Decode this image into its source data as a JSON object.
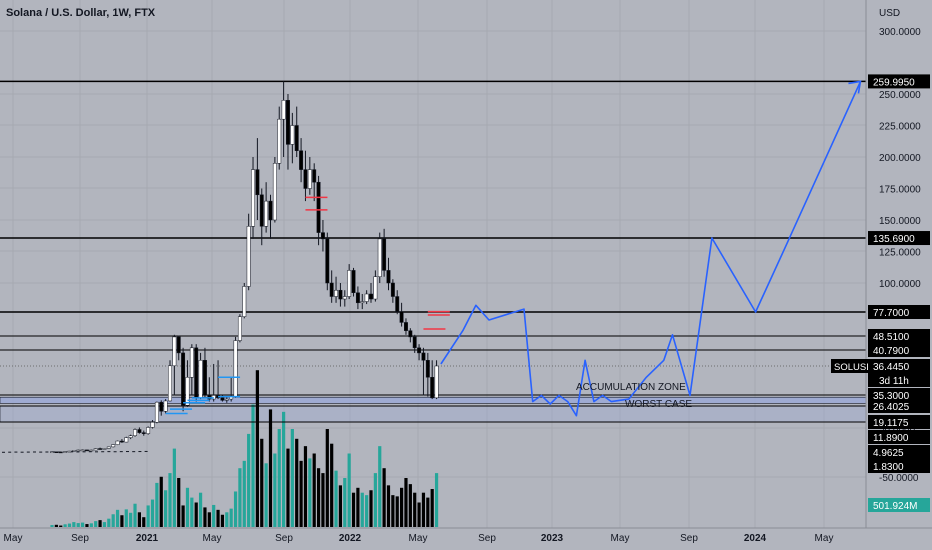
{
  "header": {
    "title": "Solana / U.S. Dollar, 1W, FTX"
  },
  "colors": {
    "background": "#b2b5be",
    "candle_up": "#ffffff",
    "candle_down": "#000000",
    "volume_up": "#26a69a",
    "volume_down": "#000000",
    "projection": "#2962ff",
    "zone_fill": "#9ba9d6",
    "red_marks": "#f23645",
    "blue_marks": "#2196f3",
    "label_bg": "#000000",
    "label_text": "#ffffff",
    "volume_label_bg": "#26a69a"
  },
  "chart_data": {
    "type": "candlestick",
    "title": "Solana / U.S. Dollar, 1W, FTX",
    "y_axis": {
      "unit": "USD",
      "ticks": [
        300,
        250,
        225,
        200,
        175,
        150,
        125,
        100,
        50,
        -50
      ],
      "tick_labels": [
        "300.0000",
        "250.0000",
        "225.0000",
        "200.0000",
        "175.0000",
        "150.0000",
        "125.0000",
        "100.0000",
        "50.0000",
        "-50.0000"
      ]
    },
    "x_axis": {
      "labels": [
        "May",
        "Sep",
        "2021",
        "May",
        "Sep",
        "2022",
        "May",
        "Sep",
        "2023",
        "May",
        "Sep",
        "2024",
        "May"
      ],
      "bold": [
        false,
        false,
        true,
        false,
        false,
        true,
        false,
        false,
        true,
        false,
        false,
        true,
        false
      ]
    },
    "horizontal_levels": [
      {
        "value": 259.995,
        "label": "259.9950"
      },
      {
        "value": 135.69,
        "label": "135.6900"
      },
      {
        "value": 77.7,
        "label": "77.7000"
      },
      {
        "value": 48.51,
        "label": "48.5100"
      },
      {
        "value": 40.79,
        "label": "40.7900"
      },
      {
        "value": 35.3,
        "label": "35.3000"
      },
      {
        "value": 26.4025,
        "label": "26.4025"
      },
      {
        "value": 19.1175,
        "label": "19.1175"
      }
    ],
    "extra_price_labels": [
      "11.8900",
      "4.9625",
      "1.8300"
    ],
    "current_price": {
      "symbol": "SOLUSD",
      "value": 36.445,
      "label": "36.4450",
      "countdown": "3d 11h"
    },
    "zones": [
      {
        "name": "ACCUMULATION ZONE",
        "from": 28.5,
        "to": 33.5
      },
      {
        "name": "WORST CASE",
        "from": 19.1175,
        "to": 26.4025
      }
    ],
    "candles": [
      [
        2.0,
        2.1,
        1.9,
        2.05
      ],
      [
        2.05,
        2.2,
        1.9,
        1.95
      ],
      [
        1.95,
        2.0,
        1.8,
        1.9
      ],
      [
        1.9,
        2.3,
        1.85,
        2.2
      ],
      [
        2.2,
        2.6,
        2.1,
        2.5
      ],
      [
        2.5,
        3.2,
        2.4,
        3.0
      ],
      [
        3.0,
        3.5,
        2.8,
        3.2
      ],
      [
        3.2,
        3.6,
        3.0,
        3.3
      ],
      [
        3.3,
        3.4,
        2.9,
        3.0
      ],
      [
        3.0,
        3.4,
        2.9,
        3.2
      ],
      [
        3.2,
        4.5,
        3.1,
        4.2
      ],
      [
        4.2,
        4.8,
        3.8,
        4.0
      ],
      [
        4.0,
        4.5,
        3.9,
        4.3
      ],
      [
        4.3,
        5.5,
        4.2,
        5.3
      ],
      [
        5.3,
        7.0,
        5.0,
        6.8
      ],
      [
        6.8,
        9.5,
        6.5,
        9.2
      ],
      [
        9.2,
        10.5,
        8.0,
        8.5
      ],
      [
        8.5,
        12.0,
        8.3,
        11.5
      ],
      [
        11.5,
        13.0,
        10.5,
        12.5
      ],
      [
        12.5,
        16.0,
        12.0,
        15.5
      ],
      [
        15.5,
        16.5,
        13.5,
        14.0
      ],
      [
        14.0,
        15.0,
        12.5,
        13.5
      ],
      [
        13.5,
        17.0,
        13.0,
        16.5
      ],
      [
        16.5,
        20.0,
        16.0,
        19.0
      ],
      [
        19.0,
        30.0,
        18.5,
        29.5
      ],
      [
        29.5,
        31.0,
        22.0,
        24.0
      ],
      [
        24.0,
        32.0,
        23.0,
        30.5
      ],
      [
        30.5,
        38.0,
        30.0,
        36.5
      ],
      [
        36.5,
        50.0,
        35.0,
        48.0
      ],
      [
        48.0,
        49.0,
        38.0,
        40.0
      ],
      [
        40.0,
        42.0,
        24.0,
        27.0
      ],
      [
        27.0,
        38.0,
        26.0,
        36.0
      ],
      [
        36.0,
        44.0,
        35.0,
        42.0
      ],
      [
        42.0,
        44.0,
        30.0,
        33.0
      ],
      [
        33.0,
        40.0,
        32.0,
        38.0
      ],
      [
        38.0,
        42.0,
        33.0,
        35.0
      ],
      [
        35.0,
        36.0,
        30.0,
        32.0
      ],
      [
        32.0,
        37.0,
        30.0,
        35.0
      ],
      [
        35.0,
        38.0,
        32.0,
        33.0
      ],
      [
        33.0,
        35.0,
        30.0,
        31.0
      ],
      [
        31.0,
        34.0,
        29.0,
        32.0
      ],
      [
        32.0,
        36.0,
        30.0,
        34.0
      ],
      [
        34.0,
        48.0,
        33.0,
        46.0
      ],
      [
        46.0,
        75.0,
        45.0,
        72.0
      ],
      [
        72.0,
        100.0,
        70.0,
        98.0
      ],
      [
        98.0,
        155.0,
        95.0,
        145.0
      ],
      [
        145.0,
        200.0,
        135.0,
        190.0
      ],
      [
        190.0,
        215.0,
        150.0,
        170.0
      ],
      [
        170.0,
        175.0,
        130.0,
        145.0
      ],
      [
        145.0,
        180.0,
        140.0,
        165.0
      ],
      [
        165.0,
        170.0,
        135.0,
        150.0
      ],
      [
        150.0,
        200.0,
        148.0,
        195.0
      ],
      [
        195.0,
        240.0,
        190.0,
        230.0
      ],
      [
        230.0,
        260.0,
        200.0,
        245.0
      ],
      [
        245.0,
        250.0,
        190.0,
        210.0
      ],
      [
        210.0,
        235.0,
        195.0,
        225.0
      ],
      [
        225.0,
        240.0,
        200.0,
        205.0
      ],
      [
        205.0,
        215.0,
        180.0,
        190.0
      ],
      [
        190.0,
        205.0,
        165.0,
        175.0
      ],
      [
        175.0,
        200.0,
        170.0,
        190.0
      ],
      [
        190.0,
        195.0,
        165.0,
        180.0
      ],
      [
        180.0,
        185.0,
        130.0,
        140.0
      ],
      [
        140.0,
        150.0,
        125.0,
        135.0
      ],
      [
        135.0,
        140.0,
        95.0,
        100.0
      ],
      [
        100.0,
        110.0,
        85.0,
        90.0
      ],
      [
        90.0,
        105.0,
        85.0,
        95.0
      ],
      [
        95.0,
        100.0,
        82.0,
        88.0
      ],
      [
        88.0,
        95.0,
        82.0,
        90.0
      ],
      [
        90.0,
        115.0,
        88.0,
        110.0
      ],
      [
        110.0,
        112.0,
        90.0,
        93.0
      ],
      [
        93.0,
        98.0,
        80.0,
        85.0
      ],
      [
        85.0,
        92.0,
        80.0,
        86.0
      ],
      [
        86.0,
        95.0,
        84.0,
        92.0
      ],
      [
        92.0,
        100.0,
        85.0,
        88.0
      ],
      [
        88.0,
        110.0,
        86.0,
        105.0
      ],
      [
        105.0,
        140.0,
        100.0,
        135.0
      ],
      [
        135.0,
        143.0,
        105.0,
        110.0
      ],
      [
        110.0,
        120.0,
        95.0,
        100.0
      ],
      [
        100.0,
        103.0,
        85.0,
        90.0
      ],
      [
        90.0,
        95.0,
        75.0,
        78.0
      ],
      [
        78.0,
        85.0,
        60.0,
        65.0
      ],
      [
        65.0,
        70.0,
        50.0,
        55.0
      ],
      [
        55.0,
        58.0,
        45.0,
        48.0
      ],
      [
        48.0,
        50.0,
        40.0,
        42.0
      ],
      [
        42.0,
        44.0,
        38.0,
        40.0
      ],
      [
        40.0,
        42.0,
        35.0,
        38.0
      ],
      [
        38.0,
        40.0,
        34.0,
        36.0
      ],
      [
        36.0,
        38.0,
        32.0,
        33.0
      ],
      [
        33.0,
        38.0,
        32.0,
        36.445
      ]
    ],
    "volume": {
      "label": "501.924M",
      "values": [
        8,
        9,
        6,
        11,
        14,
        20,
        16,
        18,
        12,
        15,
        24,
        28,
        20,
        34,
        52,
        70,
        48,
        72,
        58,
        95,
        60,
        40,
        88,
        112,
        180,
        205,
        150,
        220,
        320,
        200,
        88,
        160,
        120,
        100,
        140,
        80,
        60,
        90,
        70,
        50,
        60,
        75,
        145,
        240,
        270,
        380,
        500,
        640,
        360,
        260,
        480,
        300,
        400,
        470,
        320,
        400,
        360,
        270,
        330,
        280,
        300,
        240,
        220,
        400,
        340,
        230,
        170,
        200,
        300,
        140,
        160,
        140,
        130,
        150,
        220,
        330,
        240,
        170,
        130,
        125,
        160,
        200,
        175,
        140,
        100,
        140,
        120,
        155,
        220
      ]
    },
    "projection": {
      "weeks": [
        89,
        94,
        97,
        100,
        108,
        110,
        112,
        114,
        116,
        118,
        120,
        122,
        124,
        126,
        128,
        132,
        136,
        140,
        142,
        146,
        151,
        161,
        168,
        185
      ],
      "values": [
        37,
        55,
        83,
        68,
        80,
        30,
        35,
        28,
        35,
        30,
        22,
        38,
        30,
        35,
        30,
        32,
        36,
        38,
        50,
        35,
        135.69,
        77.7,
        130,
        260
      ]
    },
    "red_marks": [
      {
        "week": 58,
        "value": 168
      },
      {
        "week": 58,
        "value": 158
      },
      {
        "week": 86,
        "value": 78
      },
      {
        "week": 86,
        "value": 74
      },
      {
        "week": 85,
        "value": 57
      }
    ],
    "blue_marks": [
      {
        "week": 38,
        "value": 36
      },
      {
        "week": 38,
        "value": 34
      },
      {
        "week": 32,
        "value": 33
      },
      {
        "week": 31,
        "value": 31
      },
      {
        "week": 30,
        "value": 29
      },
      {
        "week": 27,
        "value": 25
      },
      {
        "week": 26,
        "value": 23
      }
    ]
  }
}
